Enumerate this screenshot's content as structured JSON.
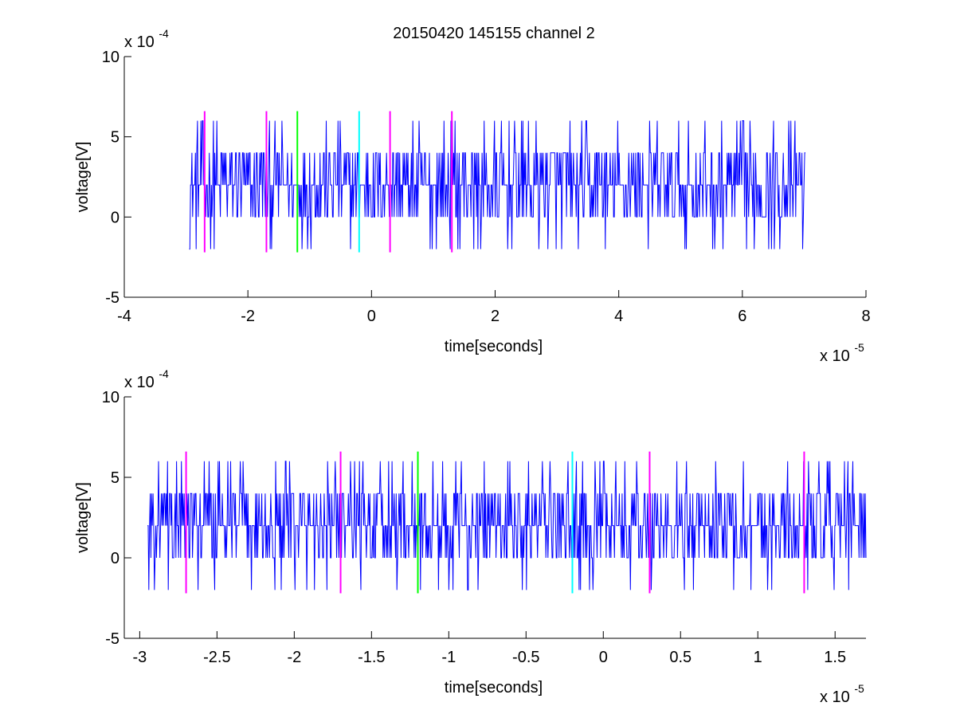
{
  "title": "20150420 145155 channel 2",
  "chart_data": [
    {
      "type": "line",
      "panel": "top",
      "xlabel": "time[seconds]",
      "ylabel": "voltage[V]",
      "xlim": [
        -4,
        8
      ],
      "ylim": [
        -5,
        10
      ],
      "x_scale_label": "x 10",
      "x_scale_exponent": "-5",
      "y_scale_label": "x 10",
      "y_scale_exponent": "-4",
      "x_ticks": [
        -4,
        -2,
        0,
        2,
        4,
        6,
        8
      ],
      "x_tick_labels": [
        "-4",
        "-2",
        "0",
        "2",
        "4",
        "6",
        "8"
      ],
      "y_ticks": [
        -5,
        0,
        5,
        10
      ],
      "y_tick_labels": [
        "-5",
        "0",
        "5",
        "10"
      ],
      "grid": false,
      "series": [
        {
          "color": "#0000ff",
          "x_start": -2.95,
          "x_end": 7.02,
          "baseline": 2,
          "levels": [
            -2,
            0,
            2,
            4,
            6
          ]
        }
      ],
      "markers": [
        {
          "x": -2.7,
          "color": "#ff00ff",
          "y_range": [
            -2.2,
            6.6
          ]
        },
        {
          "x": -1.7,
          "color": "#ff00ff",
          "y_range": [
            -2.2,
            6.6
          ]
        },
        {
          "x": -1.2,
          "color": "#00ff00",
          "y_range": [
            -2.2,
            6.6
          ]
        },
        {
          "x": -0.2,
          "color": "#00ffff",
          "y_range": [
            -2.2,
            6.6
          ]
        },
        {
          "x": 0.3,
          "color": "#ff00ff",
          "y_range": [
            -2.2,
            6.6
          ]
        },
        {
          "x": 1.3,
          "color": "#ff00ff",
          "y_range": [
            -2.2,
            6.6
          ]
        }
      ]
    },
    {
      "type": "line",
      "panel": "bottom",
      "xlabel": "time[seconds]",
      "ylabel": "voltage[V]",
      "xlim": [
        -3.1,
        1.7
      ],
      "ylim": [
        -5,
        10
      ],
      "x_scale_label": "x 10",
      "x_scale_exponent": "-5",
      "y_scale_label": "x 10",
      "y_scale_exponent": "-4",
      "x_ticks": [
        -3,
        -2.5,
        -2,
        -1.5,
        -1,
        -0.5,
        0,
        0.5,
        1,
        1.5
      ],
      "x_tick_labels": [
        "-3",
        "-2.5",
        "-2",
        "-1.5",
        "-1",
        "-0.5",
        "0",
        "0.5",
        "1",
        "1.5"
      ],
      "y_ticks": [
        -5,
        0,
        5,
        10
      ],
      "y_tick_labels": [
        "-5",
        "0",
        "5",
        "10"
      ],
      "grid": false,
      "series": [
        {
          "color": "#0000ff",
          "x_start": -2.95,
          "x_end": 1.7,
          "baseline": 2,
          "levels": [
            -2,
            0,
            2,
            4,
            6
          ]
        }
      ],
      "markers": [
        {
          "x": -2.7,
          "color": "#ff00ff",
          "y_range": [
            -2.2,
            6.6
          ]
        },
        {
          "x": -1.7,
          "color": "#ff00ff",
          "y_range": [
            -2.2,
            6.6
          ]
        },
        {
          "x": -1.2,
          "color": "#00ff00",
          "y_range": [
            -2.2,
            6.6
          ]
        },
        {
          "x": -0.2,
          "color": "#00ffff",
          "y_range": [
            -2.2,
            6.6
          ]
        },
        {
          "x": 0.3,
          "color": "#ff00ff",
          "y_range": [
            -2.2,
            6.6
          ]
        },
        {
          "x": 1.3,
          "color": "#ff00ff",
          "y_range": [
            -2.2,
            6.6
          ]
        }
      ]
    }
  ]
}
